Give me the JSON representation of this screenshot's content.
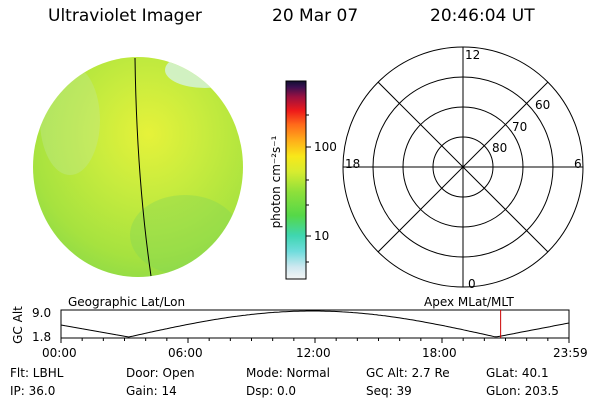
{
  "header": {
    "instrument": "Ultraviolet Imager",
    "date": "20 Mar 07",
    "time": "20:46:04 UT"
  },
  "colorbar": {
    "label": "photon cm⁻²s⁻¹",
    "ticks": [
      "100",
      "10"
    ]
  },
  "polar_plot": {
    "mlt_labels": [
      "12",
      "18",
      "6",
      "0"
    ],
    "lat_labels": [
      "60",
      "70",
      "80"
    ]
  },
  "timeline": {
    "ylabel": "GC Alt",
    "yticks": [
      "9.0",
      "1.8"
    ],
    "left_title": "Geographic Lat/Lon",
    "right_title": "Apex MLat/MLT",
    "xticks": [
      "00:00",
      "06:00",
      "12:00",
      "18:00",
      "23:59"
    ],
    "current_time_hours": 20.77,
    "current_marker_color": "#cc0000"
  },
  "info": {
    "filter": "Flt: LBHL",
    "door": "Door: Open",
    "mode": "Mode: Normal",
    "gc_alt": "GC Alt: 2.7 Re",
    "glat": "GLat:  40.1",
    "ip": "IP: 36.0",
    "gain": "Gain: 14",
    "dsp": "Dsp:     0.0",
    "seq": "Seq: 39",
    "glon": "GLon: 203.5"
  }
}
